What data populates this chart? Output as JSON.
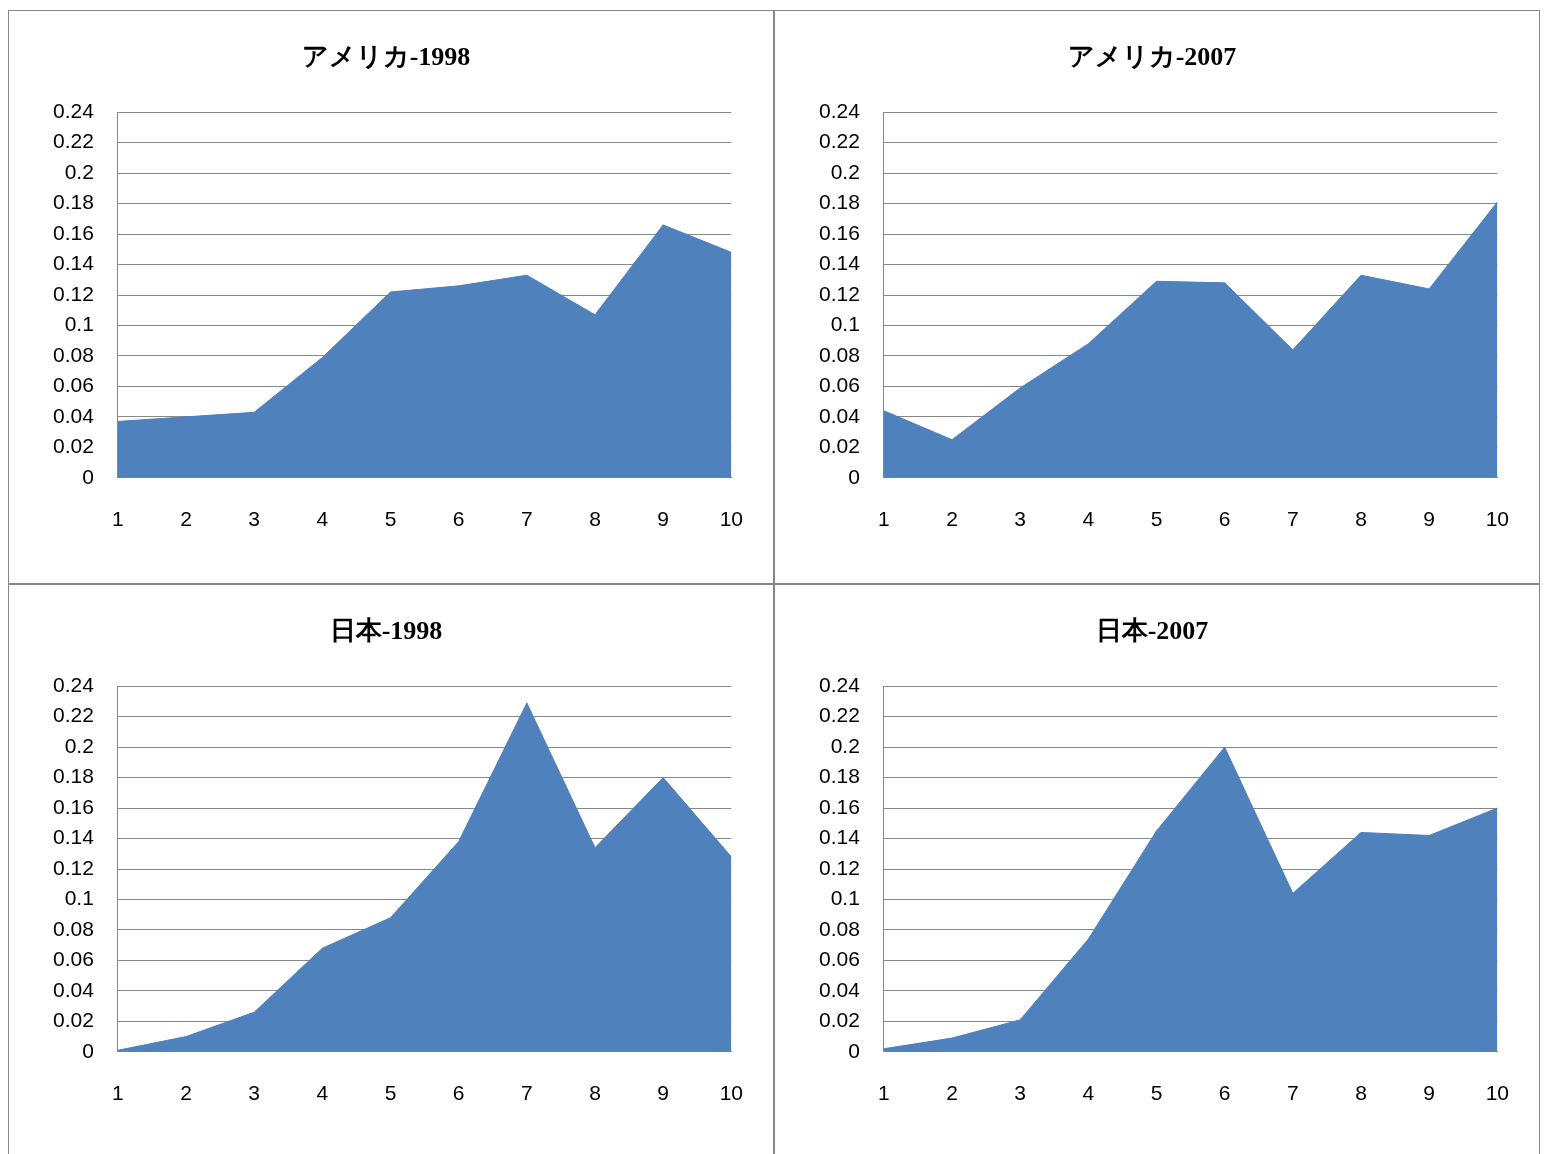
{
  "chart_data": [
    {
      "type": "area",
      "title": "アメリカ-1998",
      "categories": [
        "1",
        "2",
        "3",
        "4",
        "5",
        "6",
        "7",
        "8",
        "9",
        "10"
      ],
      "values": [
        0.037,
        0.04,
        0.043,
        0.079,
        0.122,
        0.126,
        0.133,
        0.107,
        0.166,
        0.148
      ],
      "color": "#4f81bd",
      "ylim": [
        0,
        0.24
      ],
      "yticks": [
        0,
        0.02,
        0.04,
        0.06,
        0.08,
        0.1,
        0.12,
        0.14,
        0.16,
        0.18,
        0.2,
        0.22,
        0.24
      ],
      "grid": "y"
    },
    {
      "type": "area",
      "title": "アメリカ-2007",
      "categories": [
        "1",
        "2",
        "3",
        "4",
        "5",
        "6",
        "7",
        "8",
        "9",
        "10"
      ],
      "values": [
        0.044,
        0.025,
        0.059,
        0.088,
        0.129,
        0.128,
        0.084,
        0.133,
        0.124,
        0.181
      ],
      "color": "#4f81bd",
      "ylim": [
        0,
        0.24
      ],
      "yticks": [
        0,
        0.02,
        0.04,
        0.06,
        0.08,
        0.1,
        0.12,
        0.14,
        0.16,
        0.18,
        0.2,
        0.22,
        0.24
      ],
      "grid": "y"
    },
    {
      "type": "area",
      "title": "日本-1998",
      "categories": [
        "1",
        "2",
        "3",
        "4",
        "5",
        "6",
        "7",
        "8",
        "9",
        "10"
      ],
      "values": [
        0.001,
        0.01,
        0.026,
        0.068,
        0.088,
        0.138,
        0.229,
        0.134,
        0.18,
        0.128
      ],
      "color": "#4f81bd",
      "ylim": [
        0,
        0.24
      ],
      "yticks": [
        0,
        0.02,
        0.04,
        0.06,
        0.08,
        0.1,
        0.12,
        0.14,
        0.16,
        0.18,
        0.2,
        0.22,
        0.24
      ],
      "grid": "y"
    },
    {
      "type": "area",
      "title": "日本-2007",
      "categories": [
        "1",
        "2",
        "3",
        "4",
        "5",
        "6",
        "7",
        "8",
        "9",
        "10"
      ],
      "values": [
        0.002,
        0.009,
        0.021,
        0.074,
        0.145,
        0.2,
        0.104,
        0.144,
        0.142,
        0.16
      ],
      "color": "#4f81bd",
      "ylim": [
        0,
        0.24
      ],
      "yticks": [
        0,
        0.02,
        0.04,
        0.06,
        0.08,
        0.1,
        0.12,
        0.14,
        0.16,
        0.18,
        0.2,
        0.22,
        0.24
      ],
      "grid": "y"
    }
  ]
}
